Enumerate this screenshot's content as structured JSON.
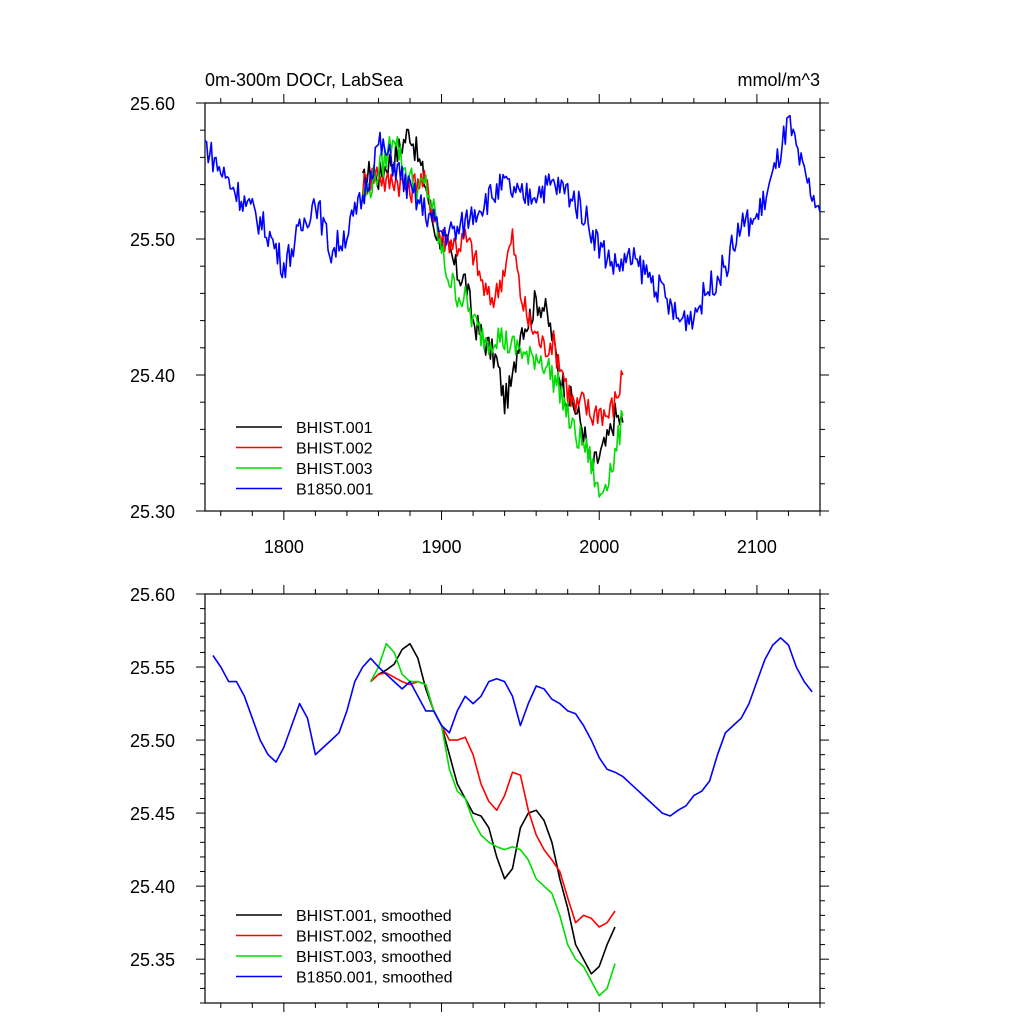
{
  "figure": {
    "title_left": "0m-300m DOCr, LabSea",
    "title_right": "mmol/m^3"
  },
  "chart_data": [
    {
      "type": "line",
      "title": "0m-300m DOCr, LabSea",
      "units": "mmol/m^3",
      "xlim": [
        1750,
        2140
      ],
      "ylim": [
        25.3,
        25.6
      ],
      "xticks": [
        1800,
        1900,
        2000,
        2100
      ],
      "yticks": [
        25.3,
        25.4,
        25.5,
        25.6
      ],
      "ytick_labels": [
        "25.30",
        "25.40",
        "25.50",
        "25.60"
      ],
      "legend_position": "bottom-left",
      "grid": false,
      "series": [
        {
          "name": "BHIST.001",
          "color": "#000000",
          "x": [
            1850,
            1855,
            1860,
            1865,
            1870,
            1875,
            1880,
            1885,
            1890,
            1895,
            1900,
            1905,
            1910,
            1915,
            1920,
            1925,
            1930,
            1935,
            1940,
            1945,
            1950,
            1955,
            1960,
            1965,
            1970,
            1975,
            1980,
            1985,
            1990,
            1995,
            2000,
            2005,
            2010,
            2015
          ],
          "y": [
            25.54,
            25.55,
            25.545,
            25.555,
            25.56,
            25.57,
            25.58,
            25.56,
            25.54,
            25.51,
            25.5,
            25.49,
            25.475,
            25.47,
            25.44,
            25.43,
            25.42,
            25.41,
            25.38,
            25.395,
            25.435,
            25.44,
            25.455,
            25.45,
            25.43,
            25.4,
            25.385,
            25.375,
            25.36,
            25.33,
            25.34,
            25.35,
            25.37,
            25.365
          ]
        },
        {
          "name": "BHIST.002",
          "color": "#ff0000",
          "x": [
            1850,
            1855,
            1860,
            1865,
            1870,
            1875,
            1880,
            1885,
            1890,
            1895,
            1900,
            1905,
            1910,
            1915,
            1920,
            1925,
            1930,
            1935,
            1940,
            1945,
            1950,
            1955,
            1960,
            1965,
            1970,
            1975,
            1980,
            1985,
            1990,
            1995,
            2000,
            2005,
            2010,
            2015
          ],
          "y": [
            25.54,
            25.545,
            25.55,
            25.54,
            25.545,
            25.54,
            25.535,
            25.545,
            25.54,
            25.52,
            25.5,
            25.5,
            25.495,
            25.5,
            25.49,
            25.47,
            25.455,
            25.46,
            25.48,
            25.5,
            25.46,
            25.44,
            25.43,
            25.42,
            25.425,
            25.41,
            25.39,
            25.375,
            25.38,
            25.37,
            25.375,
            25.37,
            25.38,
            25.4
          ]
        },
        {
          "name": "BHIST.003",
          "color": "#00dd00",
          "x": [
            1850,
            1855,
            1860,
            1865,
            1870,
            1875,
            1880,
            1885,
            1890,
            1895,
            1900,
            1905,
            1910,
            1915,
            1920,
            1925,
            1930,
            1935,
            1940,
            1945,
            1950,
            1955,
            1960,
            1965,
            1970,
            1975,
            1980,
            1985,
            1990,
            1995,
            2000,
            2005,
            2010,
            2015
          ],
          "y": [
            25.53,
            25.54,
            25.55,
            25.56,
            25.58,
            25.555,
            25.545,
            25.535,
            25.54,
            25.52,
            25.49,
            25.47,
            25.46,
            25.455,
            25.44,
            25.43,
            25.425,
            25.43,
            25.425,
            25.42,
            25.42,
            25.41,
            25.415,
            25.41,
            25.4,
            25.39,
            25.37,
            25.355,
            25.35,
            25.335,
            25.31,
            25.325,
            25.34,
            25.37
          ]
        },
        {
          "name": "B1850.001",
          "color": "#0000ff",
          "x": [
            1750,
            1760,
            1770,
            1780,
            1790,
            1800,
            1810,
            1820,
            1830,
            1840,
            1850,
            1860,
            1870,
            1880,
            1890,
            1900,
            1910,
            1920,
            1930,
            1940,
            1950,
            1960,
            1970,
            1980,
            1990,
            2000,
            2010,
            2020,
            2030,
            2040,
            2050,
            2060,
            2070,
            2080,
            2090,
            2100,
            2110,
            2120,
            2130,
            2140
          ],
          "y": [
            25.57,
            25.55,
            25.535,
            25.52,
            25.505,
            25.48,
            25.505,
            25.53,
            25.49,
            25.505,
            25.53,
            25.57,
            25.555,
            25.535,
            25.52,
            25.505,
            25.505,
            25.52,
            25.53,
            25.54,
            25.53,
            25.535,
            25.54,
            25.535,
            25.52,
            25.495,
            25.48,
            25.485,
            25.475,
            25.46,
            25.44,
            25.445,
            25.465,
            25.48,
            25.51,
            25.515,
            25.545,
            25.585,
            25.545,
            25.52
          ]
        }
      ]
    },
    {
      "type": "line",
      "xlim": [
        1750,
        2140
      ],
      "ylim": [
        25.32,
        25.6
      ],
      "xticks": [
        1800,
        1900,
        2000,
        2100
      ],
      "yticks": [
        25.35,
        25.4,
        25.45,
        25.5,
        25.55,
        25.6
      ],
      "ytick_labels": [
        "25.35",
        "25.40",
        "25.45",
        "25.50",
        "25.55",
        "25.60"
      ],
      "legend_position": "bottom-left",
      "grid": false,
      "series": [
        {
          "name": "BHIST.001, smoothed",
          "color": "#000000",
          "x": [
            1855,
            1860,
            1865,
            1870,
            1875,
            1880,
            1885,
            1890,
            1895,
            1900,
            1905,
            1910,
            1915,
            1920,
            1925,
            1930,
            1935,
            1940,
            1945,
            1950,
            1955,
            1960,
            1965,
            1970,
            1975,
            1980,
            1985,
            1990,
            1995,
            2000,
            2005,
            2010
          ],
          "y": [
            25.54,
            25.545,
            25.548,
            25.552,
            25.562,
            25.566,
            25.556,
            25.535,
            25.52,
            25.51,
            25.49,
            25.47,
            25.46,
            25.45,
            25.448,
            25.44,
            25.42,
            25.405,
            25.412,
            25.44,
            25.45,
            25.452,
            25.445,
            25.43,
            25.405,
            25.385,
            25.36,
            25.35,
            25.34,
            25.345,
            25.36,
            25.372
          ]
        },
        {
          "name": "BHIST.002, smoothed",
          "color": "#ff0000",
          "x": [
            1855,
            1860,
            1865,
            1870,
            1875,
            1880,
            1885,
            1890,
            1895,
            1900,
            1905,
            1910,
            1915,
            1920,
            1925,
            1930,
            1935,
            1940,
            1945,
            1950,
            1955,
            1960,
            1965,
            1970,
            1975,
            1980,
            1985,
            1990,
            1995,
            2000,
            2005,
            2010
          ],
          "y": [
            25.54,
            25.545,
            25.546,
            25.543,
            25.54,
            25.538,
            25.54,
            25.538,
            25.52,
            25.51,
            25.5,
            25.5,
            25.502,
            25.49,
            25.47,
            25.458,
            25.452,
            25.462,
            25.478,
            25.476,
            25.452,
            25.435,
            25.425,
            25.418,
            25.41,
            25.392,
            25.375,
            25.38,
            25.378,
            25.372,
            25.375,
            25.383
          ]
        },
        {
          "name": "BHIST.003, smoothed",
          "color": "#00dd00",
          "x": [
            1855,
            1860,
            1865,
            1870,
            1875,
            1880,
            1885,
            1890,
            1895,
            1900,
            1905,
            1910,
            1915,
            1920,
            1925,
            1930,
            1935,
            1940,
            1945,
            1950,
            1955,
            1960,
            1965,
            1970,
            1975,
            1980,
            1985,
            1990,
            1995,
            2000,
            2005,
            2010
          ],
          "y": [
            25.54,
            25.55,
            25.566,
            25.56,
            25.545,
            25.54,
            25.54,
            25.538,
            25.52,
            25.51,
            25.48,
            25.465,
            25.46,
            25.445,
            25.435,
            25.43,
            25.427,
            25.425,
            25.427,
            25.425,
            25.418,
            25.405,
            25.4,
            25.395,
            25.38,
            25.36,
            25.35,
            25.345,
            25.335,
            25.325,
            25.33,
            25.347
          ]
        },
        {
          "name": "B1850.001, smoothed",
          "color": "#0000ff",
          "x": [
            1755,
            1760,
            1765,
            1770,
            1775,
            1780,
            1785,
            1790,
            1795,
            1800,
            1805,
            1810,
            1815,
            1820,
            1825,
            1830,
            1835,
            1840,
            1845,
            1850,
            1855,
            1860,
            1865,
            1870,
            1875,
            1880,
            1885,
            1890,
            1895,
            1900,
            1905,
            1910,
            1915,
            1920,
            1925,
            1930,
            1935,
            1940,
            1945,
            1950,
            1955,
            1960,
            1965,
            1970,
            1975,
            1980,
            1985,
            1990,
            1995,
            2000,
            2005,
            2010,
            2015,
            2020,
            2025,
            2030,
            2035,
            2040,
            2045,
            2050,
            2055,
            2060,
            2065,
            2070,
            2075,
            2080,
            2085,
            2090,
            2095,
            2100,
            2105,
            2110,
            2115,
            2120,
            2125,
            2130,
            2135
          ],
          "y": [
            25.558,
            25.55,
            25.54,
            25.54,
            25.53,
            25.515,
            25.5,
            25.49,
            25.485,
            25.495,
            25.51,
            25.525,
            25.515,
            25.49,
            25.495,
            25.5,
            25.505,
            25.52,
            25.54,
            25.55,
            25.556,
            25.55,
            25.545,
            25.54,
            25.535,
            25.54,
            25.53,
            25.52,
            25.52,
            25.51,
            25.505,
            25.52,
            25.53,
            25.525,
            25.53,
            25.54,
            25.542,
            25.54,
            25.53,
            25.51,
            25.525,
            25.537,
            25.535,
            25.528,
            25.525,
            25.52,
            25.518,
            25.51,
            25.5,
            25.488,
            25.48,
            25.478,
            25.475,
            25.47,
            25.465,
            25.46,
            25.455,
            25.45,
            25.448,
            25.452,
            25.455,
            25.462,
            25.465,
            25.472,
            25.49,
            25.505,
            25.51,
            25.515,
            25.525,
            25.54,
            25.555,
            25.565,
            25.57,
            25.565,
            25.55,
            25.54,
            25.533
          ]
        }
      ]
    }
  ]
}
